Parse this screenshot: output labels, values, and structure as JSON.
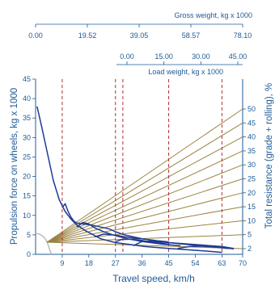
{
  "chart_data": {
    "type": "line",
    "xlabel": "Travel speed, km/h",
    "ylabel": "Propulsion force on wheels, kg x 1000",
    "y2label": "Total resistance (grade + rolling), %",
    "x_ticks": [
      "9",
      "18",
      "27",
      "36",
      "45",
      "54",
      "63",
      "70"
    ],
    "x_tick_values": [
      9,
      18,
      27,
      36,
      45,
      54,
      63,
      70
    ],
    "xlim": [
      0,
      70
    ],
    "y_ticks": [
      "0",
      "5",
      "10",
      "15",
      "20",
      "25",
      "30",
      "35",
      "40",
      "45"
    ],
    "y_tick_values": [
      0,
      5,
      10,
      15,
      20,
      25,
      30,
      35,
      40,
      45
    ],
    "ylim": [
      0,
      45
    ],
    "gross_weight_axis": {
      "label": "Gross weight, kg x 1000",
      "ticks": [
        "0.00",
        "19.52",
        "39.05",
        "58.57",
        "78.10"
      ]
    },
    "load_weight_axis": {
      "label": "Load weight, kg x 1000",
      "ticks": [
        "0.00",
        "15.00",
        "30.00",
        "45.00"
      ]
    },
    "resistance_labels": [
      "2",
      "5",
      "10",
      "15",
      "20",
      "25",
      "30",
      "35",
      "40",
      "45",
      "50"
    ],
    "resistance_percent": [
      2,
      5,
      10,
      15,
      20,
      25,
      30,
      35,
      40,
      45,
      50
    ],
    "gear_shift_speeds": [
      9,
      27,
      29.5,
      45,
      63
    ],
    "rimpull_curves": [
      {
        "points": [
          [
            0.5,
            38
          ],
          [
            2,
            33
          ],
          [
            4,
            26
          ],
          [
            6,
            19
          ],
          [
            8,
            14
          ],
          [
            10,
            11
          ],
          [
            12,
            9
          ],
          [
            14,
            7.5
          ],
          [
            17,
            6
          ],
          [
            22,
            4
          ],
          [
            27,
            3
          ],
          [
            32,
            2.5
          ],
          [
            37,
            2
          ],
          [
            45,
            1.5
          ],
          [
            55,
            1
          ],
          [
            63,
            0.5
          ]
        ]
      },
      {
        "points": [
          [
            9,
            12
          ],
          [
            10,
            13
          ],
          [
            11,
            11
          ],
          [
            12,
            9.5
          ],
          [
            13,
            8.5
          ],
          [
            14,
            8
          ],
          [
            16,
            7.8
          ],
          [
            19,
            7.5
          ],
          [
            22,
            7
          ],
          [
            25,
            6.5
          ],
          [
            27,
            5.8
          ],
          [
            30,
            5
          ],
          [
            36,
            4
          ],
          [
            45,
            3
          ],
          [
            54,
            2.5
          ],
          [
            63,
            2
          ],
          [
            67,
            1.5
          ]
        ]
      },
      {
        "points": [
          [
            14,
            7
          ],
          [
            16,
            8.2
          ],
          [
            18,
            7.8
          ],
          [
            20,
            6.8
          ],
          [
            23,
            5.8
          ],
          [
            27,
            4.8
          ],
          [
            31,
            4
          ],
          [
            36,
            3.3
          ],
          [
            43,
            2.6
          ],
          [
            49,
            2.2
          ]
        ]
      },
      {
        "points": [
          [
            20,
            4.5
          ],
          [
            23,
            5.2
          ],
          [
            26,
            5.0
          ],
          [
            28,
            4.8
          ],
          [
            30,
            4.5
          ],
          [
            33,
            4.2
          ],
          [
            36,
            4.0
          ],
          [
            41,
            3.5
          ],
          [
            45,
            3.2
          ]
        ]
      },
      {
        "points": [
          [
            27,
            3.2
          ],
          [
            29,
            3.8
          ],
          [
            32,
            3.9
          ],
          [
            35,
            3.7
          ],
          [
            38,
            3.3
          ],
          [
            42,
            2.9
          ],
          [
            45,
            2.6
          ]
        ]
      },
      {
        "points": [
          [
            33,
            2.2
          ],
          [
            36,
            3.3
          ],
          [
            39,
            3.4
          ],
          [
            42,
            3.2
          ],
          [
            45,
            3.0
          ],
          [
            49,
            2.7
          ],
          [
            54,
            2.3
          ],
          [
            60,
            1.9
          ],
          [
            65,
            1.5
          ]
        ]
      },
      {
        "points": [
          [
            48,
            1.5
          ],
          [
            52,
            2.0
          ],
          [
            56,
            2.1
          ],
          [
            60,
            1.9
          ],
          [
            63,
            1.7
          ],
          [
            67,
            1.4
          ]
        ]
      }
    ],
    "grid": false
  },
  "colors": {
    "axis": "#1e5a96",
    "rimpull": "#1f3a93",
    "resistance": "#9b8340",
    "shift": "#b03030",
    "weight_curve": "#bdbdbd"
  }
}
